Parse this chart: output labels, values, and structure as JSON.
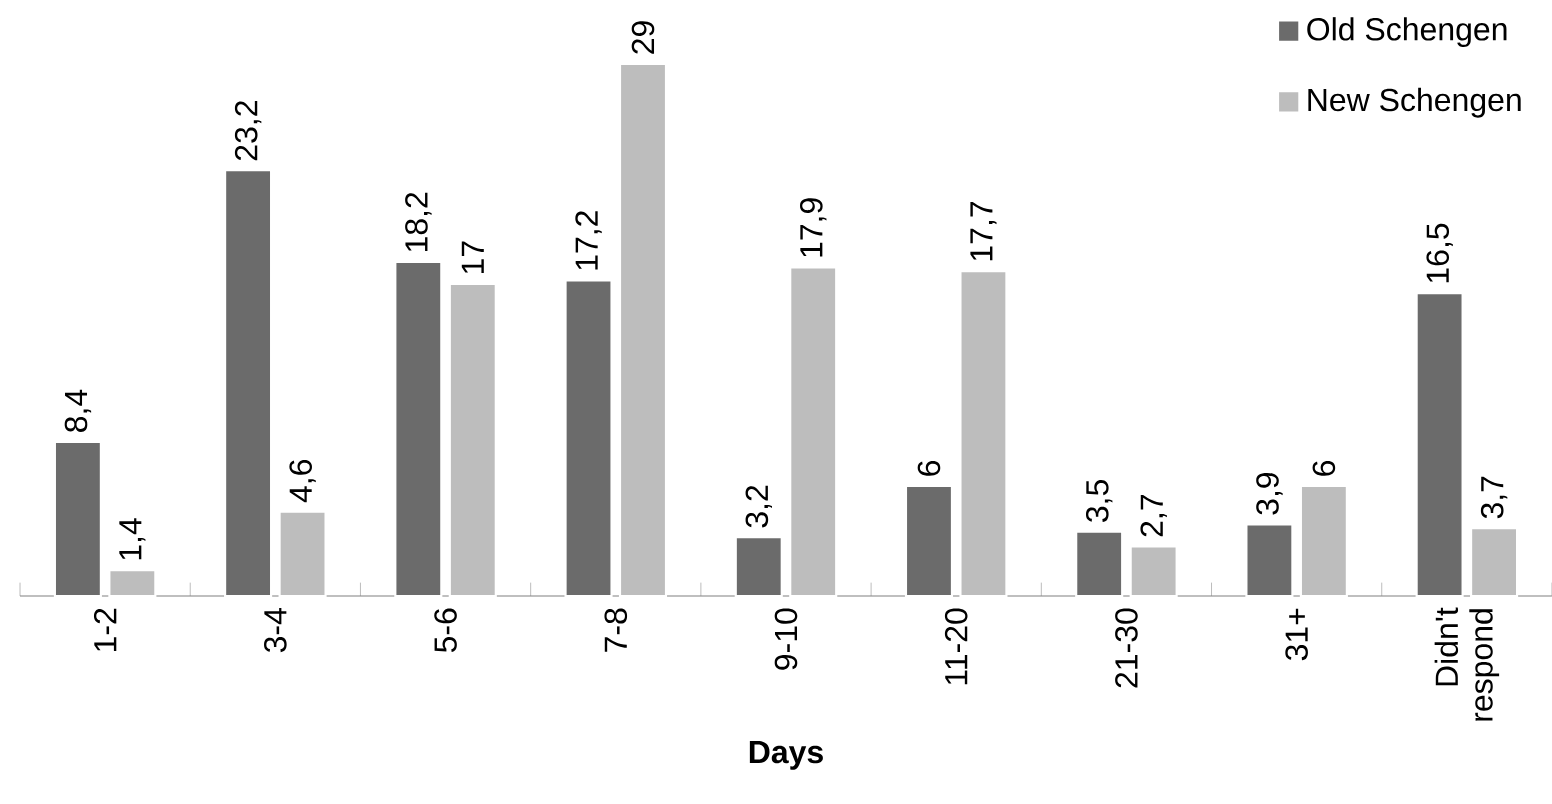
{
  "chart_data": {
    "type": "bar",
    "xlabel": "Days",
    "categories": [
      "1-2",
      "3-4",
      "5-6",
      "7-8",
      "9-10",
      "11-20",
      "21-30",
      "31+",
      "Didn't respond"
    ],
    "series": [
      {
        "name": "Old Schengen",
        "color": "#6b6b6b",
        "values": [
          8.4,
          23.2,
          18.2,
          17.2,
          3.2,
          6,
          3.5,
          3.9,
          16.5
        ],
        "value_labels": [
          "8,4",
          "23,2",
          "18,2",
          "17,2",
          "3,2",
          "6",
          "3,5",
          "3,9",
          "16,5"
        ]
      },
      {
        "name": "New Schengen",
        "color": "#bdbdbd",
        "values": [
          1.4,
          4.6,
          17,
          29,
          17.9,
          17.7,
          2.7,
          6,
          3.7
        ],
        "value_labels": [
          "1,4",
          "4,6",
          "17",
          "29",
          "17,9",
          "17,7",
          "2,7",
          "6",
          "3,7"
        ]
      }
    ],
    "legend": "top right",
    "grid": false
  }
}
